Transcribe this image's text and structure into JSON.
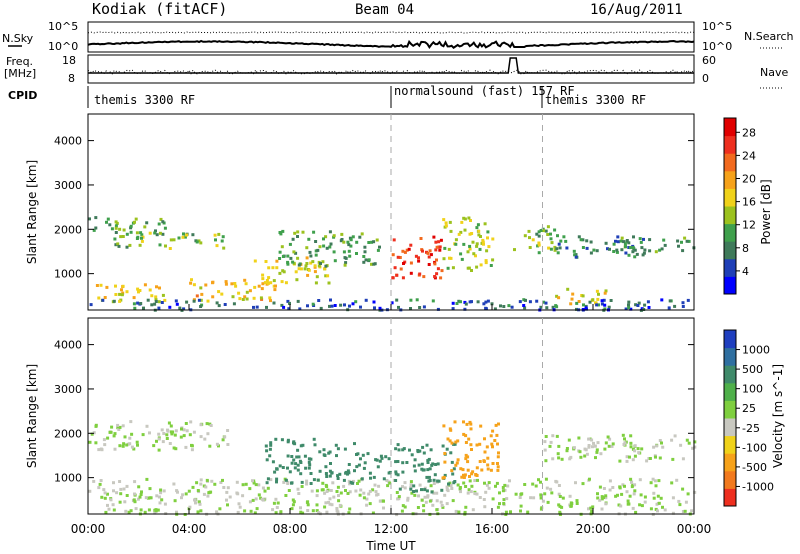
{
  "header": {
    "station": "Kodiak (fitACF)",
    "beam": "Beam 04",
    "date": "16/Aug/2011"
  },
  "top_panel": {
    "left_label_1": "N.Sky",
    "left_label_2": "Freq.",
    "left_label_3": "[MHz]",
    "left_label_4": "CPID",
    "right_label_1": "N.Search",
    "right_label_2": "Nave",
    "left_ticks": [
      "10^5",
      "10^0",
      "18",
      "8"
    ],
    "right_ticks": [
      "10^5",
      "10^0",
      "60",
      "0"
    ],
    "cpid_segments": [
      {
        "label": "themis 3300 RF",
        "start_hour": 0,
        "end_hour": 12
      },
      {
        "label": "normalsound (fast) 157 RF",
        "start_hour": 12,
        "end_hour": 18
      },
      {
        "label": "themis 3300 RF",
        "start_hour": 18,
        "end_hour": 24
      }
    ]
  },
  "x_axis": {
    "label": "Time UT",
    "ticks": [
      "00:00",
      "04:00",
      "08:00",
      "12:00",
      "16:00",
      "20:00",
      "00:00"
    ],
    "tick_hours": [
      0,
      4,
      8,
      12,
      16,
      20,
      24
    ],
    "range_hours": [
      0,
      24
    ]
  },
  "chart_data": [
    {
      "type": "heatmap",
      "name": "power",
      "ylabel": "Slant Range [km]",
      "ylim": [
        180,
        4600
      ],
      "yticks": [
        1000,
        2000,
        3000,
        4000
      ],
      "xlim": [
        0,
        24
      ],
      "colorbar": {
        "label": "Power [dB]",
        "ticks": [
          4,
          8,
          12,
          16,
          20,
          24,
          28
        ],
        "colors": [
          "#0000ff",
          "#1f3fb7",
          "#3f7a5a",
          "#3fa04c",
          "#9cc21e",
          "#f0d21a",
          "#f6a21a",
          "#f26a1e",
          "#ee2f1f",
          "#e00000"
        ]
      },
      "bands": [
        {
          "t0": 0.0,
          "t1": 3.2,
          "r0": 1900,
          "r1": 2300,
          "value": 12
        },
        {
          "t0": 1.0,
          "t1": 5.5,
          "r0": 1600,
          "r1": 1950,
          "value": 14
        },
        {
          "t0": 0.0,
          "t1": 3.0,
          "r0": 400,
          "r1": 800,
          "value": 18
        },
        {
          "t0": 4.0,
          "t1": 7.5,
          "r0": 400,
          "r1": 900,
          "value": 20
        },
        {
          "t0": 6.5,
          "t1": 9.5,
          "r0": 800,
          "r1": 1400,
          "value": 18
        },
        {
          "t0": 7.5,
          "t1": 11.5,
          "r0": 1200,
          "r1": 2000,
          "value": 12
        },
        {
          "t0": 12.0,
          "t1": 14.0,
          "r0": 900,
          "r1": 1900,
          "value": 27
        },
        {
          "t0": 14.0,
          "t1": 16.0,
          "r0": 1100,
          "r1": 2300,
          "value": 16
        },
        {
          "t0": 16.8,
          "t1": 18.5,
          "r0": 1500,
          "r1": 2100,
          "value": 14
        },
        {
          "t0": 18.5,
          "t1": 22.0,
          "r0": 1400,
          "r1": 1900,
          "value": 10
        },
        {
          "t0": 20.5,
          "t1": 24.0,
          "r0": 1500,
          "r1": 1850,
          "value": 12
        },
        {
          "t0": 18.5,
          "t1": 20.5,
          "r0": 350,
          "r1": 700,
          "value": 18
        },
        {
          "t0": 0.0,
          "t1": 24.0,
          "r0": 200,
          "r1": 450,
          "value": 8
        }
      ]
    },
    {
      "type": "heatmap",
      "name": "velocity",
      "ylabel": "Slant Range [km]",
      "ylim": [
        180,
        4600
      ],
      "yticks": [
        1000,
        2000,
        3000,
        4000
      ],
      "xlim": [
        0,
        24
      ],
      "colorbar": {
        "label": "Velocity [m s^-1]",
        "ticks": [
          "1000",
          "500",
          "100",
          "25",
          "-25",
          "-100",
          "-500",
          "-1000"
        ],
        "colors": [
          "#1f3fbf",
          "#2f6fa0",
          "#3f8a6a",
          "#4fb04a",
          "#7fcf3f",
          "#c8c8c0",
          "#f0d21a",
          "#f6a21a",
          "#f27a1e",
          "#ee2f1f"
        ]
      },
      "bands": [
        {
          "t0": 0.0,
          "t1": 5.5,
          "r0": 1650,
          "r1": 2300,
          "value": 0
        },
        {
          "t0": 0.0,
          "t1": 24.0,
          "r0": 200,
          "r1": 1000,
          "value": 0
        },
        {
          "t0": 7.0,
          "t1": 10.5,
          "r0": 900,
          "r1": 1900,
          "value": 150
        },
        {
          "t0": 10.5,
          "t1": 12.0,
          "r0": 1000,
          "r1": 1600,
          "value": 120
        },
        {
          "t0": 12.0,
          "t1": 14.5,
          "r0": 700,
          "r1": 1800,
          "value": 80
        },
        {
          "t0": 14.0,
          "t1": 16.2,
          "r0": 1000,
          "r1": 2300,
          "value": -150
        },
        {
          "t0": 18.0,
          "t1": 24.0,
          "r0": 1400,
          "r1": 2000,
          "value": 0
        }
      ]
    }
  ]
}
